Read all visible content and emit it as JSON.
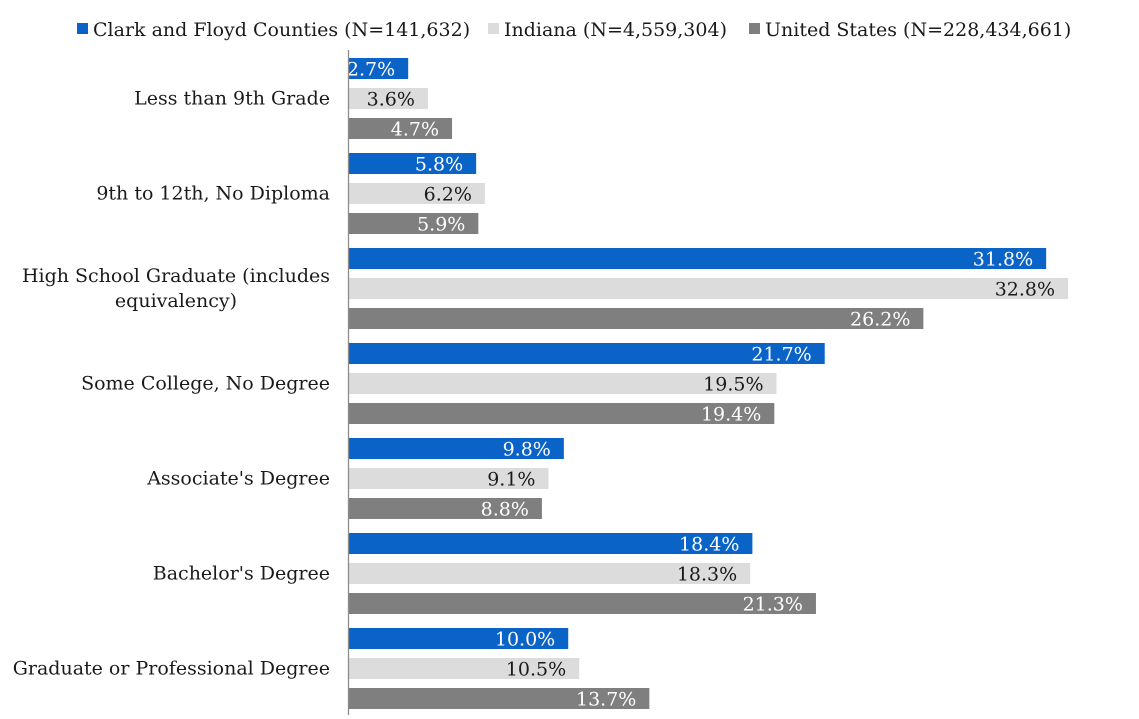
{
  "chart_data": {
    "type": "bar",
    "orientation": "horizontal",
    "categories": [
      "Less than 9th Grade",
      "9th to 12th, No Diploma",
      "High School Graduate (includes equivalency)",
      "Some College, No Degree",
      "Associate's Degree",
      "Bachelor's Degree",
      "Graduate or Professional Degree"
    ],
    "category_lines": [
      [
        "Less than 9th Grade"
      ],
      [
        "9th to 12th, No Diploma"
      ],
      [
        "High School Graduate (includes",
        "equivalency)"
      ],
      [
        "Some College, No Degree"
      ],
      [
        "Associate's Degree"
      ],
      [
        "Bachelor's Degree"
      ],
      [
        "Graduate or Professional Degree"
      ]
    ],
    "series": [
      {
        "name": "Clark and Floyd Counties (N=141,632)",
        "color": "#0a64c8",
        "label_color": "#ffffff",
        "values": [
          2.7,
          5.8,
          31.8,
          21.7,
          9.8,
          18.4,
          10.0
        ],
        "labels": [
          "2.7%",
          "5.8%",
          "31.8%",
          "21.7%",
          "9.8%",
          "18.4%",
          "10.0%"
        ]
      },
      {
        "name": "Indiana (N=4,559,304)",
        "color": "#dcdcdc",
        "label_color": "#1a1a1a",
        "values": [
          3.6,
          6.2,
          32.8,
          19.5,
          9.1,
          18.3,
          10.5
        ],
        "labels": [
          "3.6%",
          "6.2%",
          "32.8%",
          "19.5%",
          "9.1%",
          "18.3%",
          "10.5%"
        ]
      },
      {
        "name": "United States (N=228,434,661)",
        "color": "#7f7f7f",
        "label_color": "#ffffff",
        "values": [
          4.7,
          5.9,
          26.2,
          19.4,
          8.8,
          21.3,
          13.7
        ],
        "labels": [
          "4.7%",
          "5.9%",
          "26.2%",
          "19.4%",
          "8.8%",
          "21.3%",
          "13.7%"
        ]
      }
    ],
    "title": "",
    "xlabel": "",
    "ylabel": "",
    "xlim": [
      0,
      33.8
    ],
    "grid": false,
    "legend_position": "top"
  }
}
